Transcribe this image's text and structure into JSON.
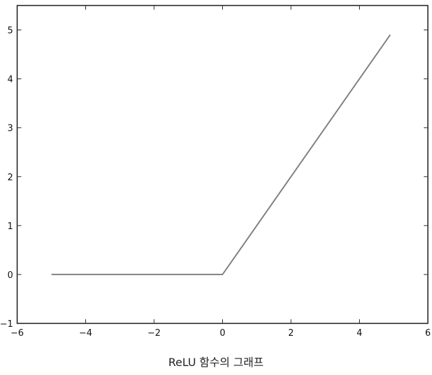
{
  "chart_data": {
    "type": "line",
    "title": "",
    "xlabel": "",
    "ylabel": "",
    "xlim": [
      -6,
      6
    ],
    "ylim": [
      -1,
      5.5
    ],
    "xticks": [
      -6,
      -4,
      -2,
      0,
      2,
      4,
      6
    ],
    "yticks": [
      -1,
      0,
      1,
      2,
      3,
      4,
      5
    ],
    "xtick_labels": [
      "−6",
      "−4",
      "−2",
      "0",
      "2",
      "4",
      "6"
    ],
    "ytick_labels": [
      "−1",
      "0",
      "1",
      "2",
      "3",
      "4",
      "5"
    ],
    "grid": false,
    "legend": "none",
    "series": [
      {
        "color": "#808080",
        "x": [
          -5,
          0,
          4.9
        ],
        "y": [
          0,
          0,
          4.9
        ]
      }
    ]
  },
  "caption": "ReLU 함수의 그래프"
}
